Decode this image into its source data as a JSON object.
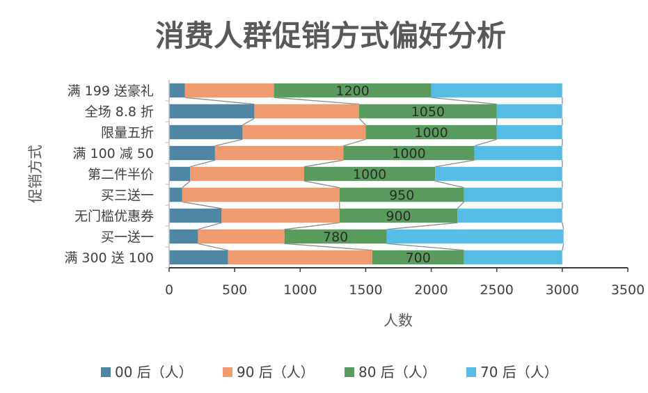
{
  "chart_data": {
    "type": "bar",
    "orientation": "horizontal",
    "stacked": true,
    "title": "消费人群促销方式偏好分析",
    "xlabel": "人数",
    "ylabel": "促销方式",
    "xlim": [
      0,
      3500
    ],
    "xticks": [
      "0",
      "500",
      "1000",
      "1500",
      "2000",
      "2500",
      "3000",
      "3500"
    ],
    "categories": [
      "满 300 送 100",
      "买一送一",
      "无门槛优惠券",
      "买三送一",
      "第二件半价",
      "满 100 减 50",
      "限量五折",
      "全场 8.8 折",
      "满 199 送豪礼"
    ],
    "series": [
      {
        "name": "00 后（人）",
        "color": "#4e86a3",
        "values": [
          450,
          220,
          400,
          100,
          160,
          350,
          560,
          650,
          120
        ]
      },
      {
        "name": "90 后（人）",
        "color": "#f09a6f",
        "values": [
          1100,
          660,
          900,
          1200,
          870,
          980,
          940,
          800,
          680
        ]
      },
      {
        "name": "80 后（人）",
        "color": "#5a9c5e",
        "values": [
          700,
          780,
          900,
          950,
          1000,
          1000,
          1000,
          1050,
          1200
        ]
      },
      {
        "name": "70 后（人）",
        "color": "#57bde6",
        "values": [
          750,
          1350,
          800,
          750,
          970,
          670,
          500,
          500,
          1000
        ]
      }
    ],
    "data_labels": [
      "700",
      "780",
      "900",
      "950",
      "1000",
      "1000",
      "1000",
      "1050",
      "1200"
    ],
    "data_label_series": 2,
    "series_lines": true,
    "legend_position": "bottom",
    "grid": false
  }
}
